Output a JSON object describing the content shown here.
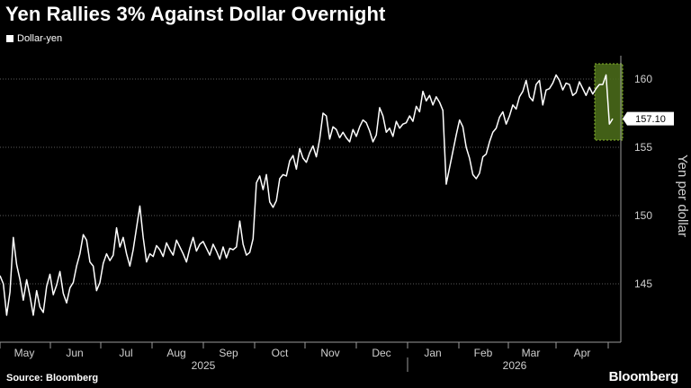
{
  "title": "Yen Rallies 3% Against Dollar Overnight",
  "source": "Source: Bloomberg",
  "brand": "Bloomberg",
  "colors": {
    "background": "#000000",
    "line": "#ffffff",
    "grid": "#5a5a5a",
    "highlight_fill": "#4a6a1a",
    "highlight_border": "#9acd32",
    "callout_bg": "#ffffff"
  },
  "chart_data": {
    "type": "line",
    "legend": [
      "Dollar-yen"
    ],
    "ylabel": "Yen per dollar",
    "ylim": [
      141,
      162
    ],
    "yticks": [
      145,
      150,
      155,
      160
    ],
    "months": [
      "May",
      "Jun",
      "Jul",
      "Aug",
      "Sep",
      "Oct",
      "Nov",
      "Dec",
      "Jan",
      "Feb",
      "Mar",
      "Apr"
    ],
    "years": [
      "2025",
      "2026"
    ],
    "grid": true,
    "last_value_label": "157.10",
    "highlight": "Overnight drop at end of series",
    "series": [
      {
        "name": "Dollar-yen",
        "values": [
          145.6,
          145.0,
          142.7,
          144.4,
          148.4,
          146.4,
          145.3,
          143.8,
          145.3,
          144.1,
          142.7,
          144.5,
          143.3,
          142.9,
          144.8,
          145.7,
          144.2,
          144.9,
          145.9,
          144.3,
          143.6,
          144.7,
          145.1,
          146.3,
          147.2,
          148.6,
          148.2,
          146.6,
          146.3,
          144.5,
          145.1,
          146.5,
          147.2,
          146.7,
          147.1,
          149.1,
          147.7,
          148.4,
          147.2,
          146.3,
          147.5,
          149.1,
          150.7,
          148.4,
          146.6,
          147.2,
          147.0,
          147.8,
          147.5,
          147.0,
          148.0,
          147.5,
          147.1,
          148.2,
          147.7,
          147.2,
          146.6,
          147.6,
          148.4,
          147.4,
          147.9,
          148.1,
          147.6,
          147.1,
          147.9,
          147.4,
          146.8,
          147.7,
          146.9,
          147.6,
          147.5,
          147.7,
          149.6,
          147.9,
          147.1,
          147.3,
          148.3,
          152.4,
          152.9,
          151.9,
          153.0,
          151.0,
          150.6,
          151.1,
          152.7,
          153.0,
          152.9,
          154.0,
          154.4,
          153.4,
          154.9,
          154.2,
          153.9,
          154.6,
          155.1,
          154.3,
          155.6,
          157.5,
          157.3,
          155.6,
          156.5,
          156.3,
          155.7,
          156.1,
          155.7,
          155.4,
          156.3,
          155.8,
          156.5,
          157.0,
          156.8,
          156.2,
          155.4,
          155.9,
          157.9,
          157.3,
          156.1,
          156.4,
          155.8,
          156.9,
          156.4,
          156.7,
          156.8,
          157.3,
          156.9,
          158.0,
          157.6,
          159.1,
          158.4,
          158.8,
          158.1,
          158.7,
          158.3,
          157.7,
          152.3,
          153.5,
          154.7,
          155.9,
          157.0,
          156.5,
          155.0,
          154.2,
          153.0,
          152.7,
          153.1,
          154.3,
          154.5,
          155.4,
          156.1,
          156.4,
          157.2,
          157.6,
          156.7,
          157.3,
          158.1,
          157.8,
          158.7,
          159.1,
          159.9,
          158.7,
          158.4,
          159.6,
          159.9,
          158.1,
          159.2,
          159.3,
          159.7,
          160.3,
          159.9,
          159.2,
          159.7,
          159.6,
          158.8,
          159.0,
          159.8,
          159.3,
          158.8,
          159.4,
          158.9,
          159.3,
          159.6,
          159.6,
          160.3,
          156.7,
          157.1
        ]
      }
    ]
  }
}
